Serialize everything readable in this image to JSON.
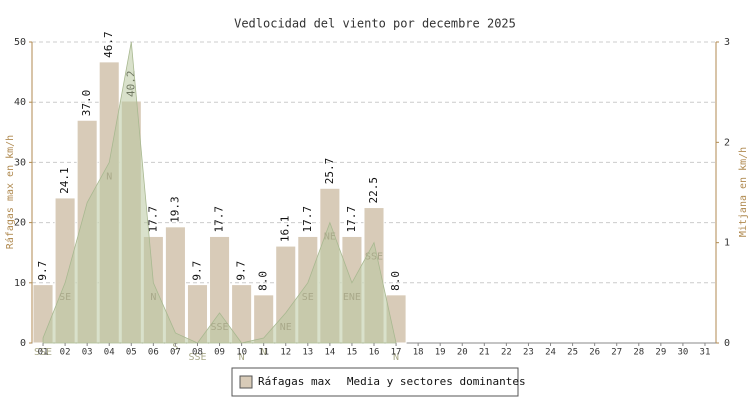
{
  "chart_data": {
    "type": "bar",
    "title": "Vedlocidad del viento por decembre 2025",
    "ylabel": "Ráfagas max en km/h",
    "y2label": "Mitjana en km/h",
    "categories": [
      "01",
      "02",
      "03",
      "04",
      "05",
      "06",
      "07",
      "08",
      "09",
      "10",
      "11",
      "12",
      "13",
      "14",
      "15",
      "16",
      "17",
      "18",
      "19",
      "20",
      "21",
      "22",
      "23",
      "24",
      "25",
      "26",
      "27",
      "28",
      "29",
      "30",
      "31"
    ],
    "series": [
      {
        "name": "Ráfagas max",
        "color": "#d8cbb8",
        "values": [
          9.7,
          24.1,
          37.0,
          46.7,
          40.2,
          17.7,
          19.3,
          9.7,
          17.7,
          9.7,
          8.0,
          16.1,
          17.7,
          25.7,
          17.7,
          22.5,
          8.0,
          null,
          null,
          null,
          null,
          null,
          null,
          null,
          null,
          null,
          null,
          null,
          null,
          null,
          null
        ],
        "value_labels": [
          "9.7",
          "24.1",
          "37.0",
          "46.7",
          "40.2",
          "17.7",
          "19.3",
          "9.7",
          "17.7",
          "9.7",
          "8.0",
          "16.1",
          "17.7",
          "25.7",
          "17.7",
          "22.5",
          "8.0",
          null,
          null,
          null,
          null,
          null,
          null,
          null,
          null,
          null,
          null,
          null,
          null,
          null,
          null
        ]
      },
      {
        "name": "Media y sectores dominantes",
        "color": "#b9c9a0",
        "axis": "y2",
        "type": "area",
        "values": [
          0.05,
          0.6,
          1.4,
          1.8,
          3.0,
          0.6,
          0.1,
          0,
          0.3,
          0,
          0.05,
          0.3,
          0.6,
          1.2,
          0.6,
          1.0,
          0,
          null,
          null,
          null,
          null,
          null,
          null,
          null,
          null,
          null,
          null,
          null,
          null,
          null,
          null
        ],
        "sectors": [
          "SSE",
          "SE",
          null,
          "N",
          null,
          "N",
          "S",
          "SSE",
          "SSE",
          "N",
          "N",
          "NE",
          "SE",
          "NE",
          "ENE",
          "SSE",
          "N",
          null,
          null,
          null,
          null,
          null,
          null,
          null,
          null,
          null,
          null,
          null,
          null,
          null,
          null
        ]
      }
    ],
    "ylim": [
      0,
      50
    ],
    "yticks": [
      0,
      10,
      20,
      30,
      40,
      50
    ],
    "y2lim": [
      0,
      3
    ],
    "y2ticks": [
      0,
      1,
      2,
      3
    ],
    "grid": true
  }
}
